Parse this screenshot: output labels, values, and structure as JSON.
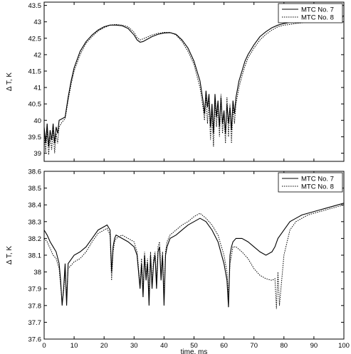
{
  "chart_data": [
    {
      "type": "line",
      "title": "",
      "xlabel": "",
      "ylabel": "Δ T, K",
      "xlim": [
        0,
        100
      ],
      "ylim": [
        38.75,
        43.6
      ],
      "xticks": [],
      "yticks": [
        39,
        39.5,
        40,
        40.5,
        41,
        41.5,
        42,
        42.5,
        43,
        43.5
      ],
      "grid": false,
      "legend_position": "top-right",
      "series": [
        {
          "name": "MTC No. 7",
          "style": "solid",
          "color": "#000000",
          "x": [
            0,
            0.5,
            1,
            1.5,
            2,
            2.5,
            3,
            3.5,
            4,
            4.5,
            5,
            6,
            7,
            8,
            9,
            10,
            12,
            14,
            16,
            18,
            20,
            22,
            24,
            26,
            28,
            30,
            31,
            32,
            33,
            34,
            36,
            38,
            40,
            42,
            44,
            46,
            48,
            50,
            51,
            52,
            53,
            53.5,
            54,
            54.5,
            55,
            55.5,
            56,
            56.5,
            57,
            57.5,
            58,
            58.5,
            59,
            59.5,
            60,
            60.5,
            61,
            61.5,
            62,
            62.5,
            63,
            63.5,
            64,
            65,
            66,
            67,
            68,
            70,
            72,
            74,
            76,
            78,
            80,
            82,
            84,
            86,
            88,
            90,
            92,
            94,
            96,
            98,
            100
          ],
          "values": [
            39.8,
            39.3,
            39.9,
            39.2,
            39.7,
            39.4,
            39.9,
            39.3,
            39.8,
            39.6,
            40.0,
            40.05,
            40.1,
            40.7,
            41.2,
            41.6,
            42.1,
            42.4,
            42.6,
            42.75,
            42.85,
            42.9,
            42.9,
            42.88,
            42.8,
            42.6,
            42.45,
            42.38,
            42.4,
            42.45,
            42.55,
            42.62,
            42.66,
            42.67,
            42.62,
            42.45,
            42.2,
            41.8,
            41.5,
            41.2,
            40.6,
            40.2,
            40.9,
            40.4,
            40.8,
            39.8,
            40.5,
            39.6,
            40.8,
            40.1,
            40.6,
            39.8,
            40.7,
            39.9,
            40.3,
            39.6,
            40.5,
            39.9,
            40.4,
            39.7,
            40.6,
            40.2,
            40.7,
            41.2,
            41.5,
            41.8,
            42.0,
            42.3,
            42.55,
            42.7,
            42.82,
            42.9,
            42.95,
            42.98,
            43.0,
            43.0,
            43.02,
            43.05,
            43.08,
            43.1,
            43.12,
            43.15,
            43.18
          ]
        },
        {
          "name": "MTC No. 8",
          "style": "dotted",
          "color": "#000000",
          "x": [
            0,
            0.5,
            1,
            1.5,
            2,
            2.5,
            3,
            3.5,
            4,
            4.5,
            5,
            6,
            7,
            8,
            9,
            10,
            12,
            14,
            16,
            18,
            20,
            22,
            24,
            26,
            28,
            30,
            31,
            32,
            33,
            34,
            36,
            38,
            40,
            42,
            44,
            46,
            48,
            50,
            51,
            52,
            53,
            53.5,
            54,
            54.5,
            55,
            55.5,
            56,
            56.5,
            57,
            57.5,
            58,
            58.5,
            59,
            59.5,
            60,
            60.5,
            61,
            61.5,
            62,
            62.5,
            63,
            63.5,
            64,
            65,
            66,
            67,
            68,
            70,
            72,
            74,
            76,
            78,
            80,
            82,
            84,
            86,
            88,
            90,
            92,
            94,
            96,
            98,
            100
          ],
          "values": [
            39.6,
            39.0,
            39.7,
            38.95,
            39.5,
            39.1,
            39.7,
            39.0,
            39.6,
            39.3,
            39.8,
            39.95,
            40.05,
            40.6,
            41.1,
            41.5,
            42.0,
            42.35,
            42.55,
            42.72,
            42.82,
            42.9,
            42.92,
            42.9,
            42.85,
            42.68,
            42.52,
            42.45,
            42.48,
            42.52,
            42.6,
            42.65,
            42.68,
            42.68,
            42.6,
            42.4,
            42.1,
            41.7,
            41.35,
            41.0,
            40.4,
            40.0,
            40.7,
            39.9,
            40.6,
            39.4,
            40.3,
            39.2,
            40.6,
            39.8,
            40.5,
            39.5,
            40.8,
            39.6,
            40.2,
            39.3,
            40.7,
            39.5,
            40.5,
            39.3,
            40.4,
            39.9,
            40.5,
            41.0,
            41.35,
            41.65,
            41.9,
            42.2,
            42.45,
            42.62,
            42.75,
            42.85,
            42.9,
            42.92,
            42.95,
            42.97,
            43.0,
            43.02,
            43.05,
            43.08,
            43.1,
            43.12,
            43.15
          ]
        }
      ]
    },
    {
      "type": "line",
      "title": "",
      "xlabel": "time, ms",
      "ylabel": "Δ T, K",
      "xlim": [
        0,
        100
      ],
      "ylim": [
        37.6,
        38.6
      ],
      "xticks": [
        0,
        10,
        20,
        30,
        40,
        50,
        60,
        70,
        80,
        90,
        100
      ],
      "yticks": [
        37.6,
        37.7,
        37.8,
        37.9,
        38,
        38.1,
        38.2,
        38.3,
        38.4,
        38.5,
        38.6
      ],
      "grid": false,
      "legend_position": "top-right",
      "series": [
        {
          "name": "MTC No. 7",
          "style": "solid",
          "color": "#000000",
          "x": [
            0,
            1,
            2,
            3,
            4,
            5,
            5.5,
            6,
            6.5,
            7,
            7.5,
            8,
            10,
            12,
            14,
            16,
            18,
            20,
            21,
            22,
            22.5,
            23,
            23.5,
            24,
            26,
            28,
            30,
            31,
            31.5,
            32,
            32.5,
            33,
            33.5,
            34,
            34.5,
            35,
            35.5,
            36,
            36.5,
            37,
            37.5,
            38,
            38.5,
            39,
            39.5,
            40,
            40.5,
            41,
            42,
            44,
            46,
            48,
            50,
            52,
            54,
            56,
            58,
            60,
            61,
            61.5,
            62,
            62.5,
            63,
            64,
            66,
            68,
            70,
            72,
            74,
            76,
            77,
            78,
            80,
            82,
            84,
            86,
            88,
            90,
            92,
            94,
            96,
            98,
            100
          ],
          "values": [
            38.25,
            38.22,
            38.18,
            38.15,
            38.12,
            38.05,
            37.95,
            37.8,
            37.9,
            38.05,
            37.8,
            38.05,
            38.1,
            38.12,
            38.15,
            38.2,
            38.25,
            38.27,
            38.28,
            38.25,
            38.0,
            38.15,
            38.2,
            38.22,
            38.2,
            38.18,
            38.15,
            38.1,
            38.0,
            37.9,
            38.05,
            37.85,
            38.1,
            37.95,
            38.05,
            37.8,
            38.1,
            37.9,
            38.05,
            38.1,
            37.9,
            38.12,
            38.15,
            37.95,
            38.1,
            37.8,
            38.1,
            38.15,
            38.2,
            38.22,
            38.25,
            38.28,
            38.3,
            38.32,
            38.3,
            38.25,
            38.18,
            38.05,
            37.95,
            37.79,
            38.1,
            38.15,
            38.18,
            38.2,
            38.2,
            38.18,
            38.15,
            38.12,
            38.1,
            38.12,
            38.15,
            38.2,
            38.25,
            38.3,
            38.32,
            38.34,
            38.35,
            38.36,
            38.37,
            38.38,
            38.39,
            38.4,
            38.41
          ]
        },
        {
          "name": "MTC No. 8",
          "style": "dotted",
          "color": "#000000",
          "x": [
            0,
            1,
            2,
            3,
            4,
            5,
            5.5,
            6,
            6.5,
            7,
            7.5,
            8,
            10,
            12,
            14,
            16,
            18,
            20,
            21,
            22,
            22.5,
            23,
            23.5,
            24,
            26,
            28,
            30,
            31,
            31.5,
            32,
            32.5,
            33,
            33.5,
            34,
            34.5,
            35,
            35.5,
            36,
            36.5,
            37,
            37.5,
            38,
            38.5,
            39,
            39.5,
            40,
            40.5,
            41,
            42,
            44,
            46,
            48,
            50,
            52,
            54,
            56,
            58,
            60,
            61,
            61.5,
            62,
            62.5,
            63,
            64,
            66,
            68,
            70,
            72,
            74,
            76,
            77,
            77.5,
            78,
            78.5,
            80,
            82,
            84,
            86,
            88,
            90,
            92,
            94,
            96,
            98,
            100
          ],
          "values": [
            38.2,
            38.18,
            38.14,
            38.1,
            38.08,
            38.02,
            37.92,
            37.82,
            37.88,
            38.0,
            37.85,
            38.02,
            38.06,
            38.08,
            38.12,
            38.18,
            38.23,
            38.25,
            38.26,
            38.22,
            37.95,
            38.12,
            38.18,
            38.2,
            38.22,
            38.2,
            38.18,
            38.12,
            38.02,
            37.92,
            38.08,
            37.88,
            38.12,
            37.98,
            38.08,
            37.85,
            38.12,
            37.92,
            38.08,
            38.12,
            37.95,
            38.15,
            38.18,
            37.98,
            38.12,
            37.85,
            38.12,
            38.18,
            38.22,
            38.25,
            38.28,
            38.3,
            38.33,
            38.35,
            38.32,
            38.28,
            38.22,
            38.1,
            38.0,
            37.85,
            38.05,
            38.1,
            38.15,
            38.15,
            38.12,
            38.08,
            38.02,
            37.98,
            37.96,
            37.95,
            37.96,
            37.78,
            38.0,
            37.8,
            38.1,
            38.25,
            38.3,
            38.32,
            38.34,
            38.35,
            38.36,
            38.37,
            38.38,
            38.39,
            38.4
          ]
        }
      ]
    }
  ]
}
